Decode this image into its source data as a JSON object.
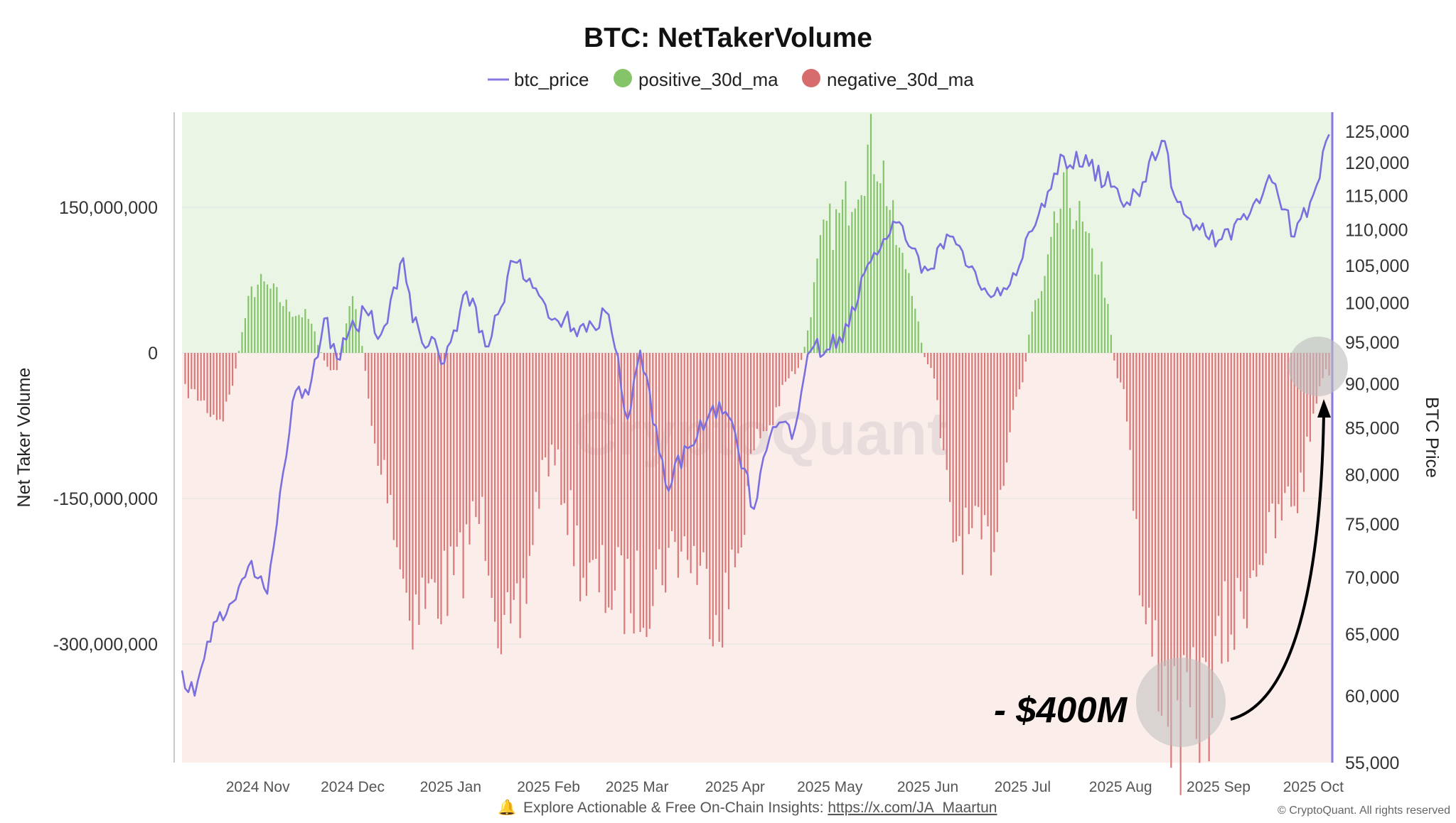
{
  "chart_data": {
    "type": "bar",
    "title": "BTC: NetTakerVolume",
    "ylabel": "Net Taker Volume",
    "y2label": "BTC Price",
    "ylim": [
      -280000000,
      165000000
    ],
    "y2lim": [
      55000,
      125000
    ],
    "y2_scale": "log",
    "y_ticks": [
      "150,000,000",
      "0",
      "-150,000,000",
      "-300,000,000"
    ],
    "y2_ticks": [
      "125,000",
      "120,000",
      "115,000",
      "110,000",
      "105,000",
      "100,000",
      "95,000",
      "90,000",
      "85,000",
      "80,000",
      "75,000",
      "70,000",
      "65,000",
      "60,000",
      "55,000"
    ],
    "x_ticks": [
      "2024 Nov",
      "2024 Dec",
      "2025 Jan",
      "2025 Feb",
      "2025 Mar",
      "2025 Apr",
      "2025 May",
      "2025 Jun",
      "2025 Jul",
      "2025 Aug",
      "2025 Sep",
      "2025 Oct"
    ],
    "x_range": [
      "2024-10-08",
      "2025-10-07"
    ],
    "legend": [
      {
        "name": "btc_price",
        "color": "#8878e0",
        "marker": "line"
      },
      {
        "name": "positive_30d_ma",
        "color": "#86c46a",
        "marker": "dot"
      },
      {
        "name": "negative_30d_ma",
        "color": "#d76c6c",
        "marker": "dot"
      }
    ],
    "legend_placement": "top-center",
    "colors": {
      "price": "#7b6fe0",
      "positive": "#86c46a",
      "negative": "#d97a7a",
      "bg_positive": "#eaf5e6",
      "bg_negative": "#fbeeea"
    },
    "net_taker_volume_monthly": [
      {
        "x": "2024-10-10",
        "y": -40000000
      },
      {
        "x": "2024-10-20",
        "y": -65000000
      },
      {
        "x": "2024-11-01",
        "y": 70000000
      },
      {
        "x": "2024-11-15",
        "y": 40000000
      },
      {
        "x": "2024-11-25",
        "y": -20000000
      },
      {
        "x": "2024-12-01",
        "y": 50000000
      },
      {
        "x": "2024-12-10",
        "y": -120000000
      },
      {
        "x": "2024-12-20",
        "y": -260000000
      },
      {
        "x": "2025-01-01",
        "y": -240000000
      },
      {
        "x": "2025-01-10",
        "y": -170000000
      },
      {
        "x": "2025-01-20",
        "y": -310000000
      },
      {
        "x": "2025-02-01",
        "y": -110000000
      },
      {
        "x": "2025-02-15",
        "y": -240000000
      },
      {
        "x": "2025-03-01",
        "y": -250000000
      },
      {
        "x": "2025-03-15",
        "y": -200000000
      },
      {
        "x": "2025-03-28",
        "y": -260000000
      },
      {
        "x": "2025-04-10",
        "y": -80000000
      },
      {
        "x": "2025-04-20",
        "y": -20000000
      },
      {
        "x": "2025-05-01",
        "y": 130000000
      },
      {
        "x": "2025-05-15",
        "y": 210000000
      },
      {
        "x": "2025-05-25",
        "y": 90000000
      },
      {
        "x": "2025-06-01",
        "y": -10000000
      },
      {
        "x": "2025-06-10",
        "y": -190000000
      },
      {
        "x": "2025-06-20",
        "y": -200000000
      },
      {
        "x": "2025-06-30",
        "y": -40000000
      },
      {
        "x": "2025-07-05",
        "y": 50000000
      },
      {
        "x": "2025-07-15",
        "y": 160000000
      },
      {
        "x": "2025-07-25",
        "y": 90000000
      },
      {
        "x": "2025-08-01",
        "y": -30000000
      },
      {
        "x": "2025-08-10",
        "y": -300000000
      },
      {
        "x": "2025-08-20",
        "y": -390000000
      },
      {
        "x": "2025-08-28",
        "y": -360000000
      },
      {
        "x": "2025-09-05",
        "y": -280000000
      },
      {
        "x": "2025-09-15",
        "y": -200000000
      },
      {
        "x": "2025-09-25",
        "y": -150000000
      },
      {
        "x": "2025-10-05",
        "y": -20000000
      }
    ],
    "btc_price": [
      {
        "x": "2024-10-08",
        "y": 62000
      },
      {
        "x": "2024-10-12",
        "y": 60000
      },
      {
        "x": "2024-10-18",
        "y": 66000
      },
      {
        "x": "2024-10-25",
        "y": 68000
      },
      {
        "x": "2024-10-29",
        "y": 71000
      },
      {
        "x": "2024-11-04",
        "y": 68500
      },
      {
        "x": "2024-11-07",
        "y": 75000
      },
      {
        "x": "2024-11-12",
        "y": 88000
      },
      {
        "x": "2024-11-18",
        "y": 90500
      },
      {
        "x": "2024-11-22",
        "y": 98000
      },
      {
        "x": "2024-11-26",
        "y": 93000
      },
      {
        "x": "2024-12-05",
        "y": 99000
      },
      {
        "x": "2024-12-10",
        "y": 96000
      },
      {
        "x": "2024-12-17",
        "y": 106000
      },
      {
        "x": "2024-12-20",
        "y": 97500
      },
      {
        "x": "2024-12-30",
        "y": 92500
      },
      {
        "x": "2025-01-06",
        "y": 101500
      },
      {
        "x": "2025-01-13",
        "y": 94500
      },
      {
        "x": "2025-01-21",
        "y": 105500
      },
      {
        "x": "2025-01-27",
        "y": 102000
      },
      {
        "x": "2025-02-03",
        "y": 98000
      },
      {
        "x": "2025-02-11",
        "y": 97000
      },
      {
        "x": "2025-02-20",
        "y": 98500
      },
      {
        "x": "2025-02-26",
        "y": 86000
      },
      {
        "x": "2025-03-02",
        "y": 94000
      },
      {
        "x": "2025-03-10",
        "y": 79000
      },
      {
        "x": "2025-03-18",
        "y": 83000
      },
      {
        "x": "2025-03-25",
        "y": 87500
      },
      {
        "x": "2025-04-01",
        "y": 84500
      },
      {
        "x": "2025-04-07",
        "y": 76500
      },
      {
        "x": "2025-04-12",
        "y": 84000
      },
      {
        "x": "2025-04-20",
        "y": 85000
      },
      {
        "x": "2025-04-25",
        "y": 94000
      },
      {
        "x": "2025-05-05",
        "y": 95000
      },
      {
        "x": "2025-05-12",
        "y": 104000
      },
      {
        "x": "2025-05-22",
        "y": 111000
      },
      {
        "x": "2025-05-30",
        "y": 104000
      },
      {
        "x": "2025-06-09",
        "y": 109000
      },
      {
        "x": "2025-06-13",
        "y": 105000
      },
      {
        "x": "2025-06-22",
        "y": 101000
      },
      {
        "x": "2025-07-01",
        "y": 106000
      },
      {
        "x": "2025-07-10",
        "y": 116000
      },
      {
        "x": "2025-07-14",
        "y": 121000
      },
      {
        "x": "2025-07-22",
        "y": 119500
      },
      {
        "x": "2025-07-31",
        "y": 116000
      },
      {
        "x": "2025-08-03",
        "y": 114000
      },
      {
        "x": "2025-08-08",
        "y": 117000
      },
      {
        "x": "2025-08-14",
        "y": 123500
      },
      {
        "x": "2025-08-19",
        "y": 114000
      },
      {
        "x": "2025-08-26",
        "y": 110000
      },
      {
        "x": "2025-09-01",
        "y": 108500
      },
      {
        "x": "2025-09-08",
        "y": 111500
      },
      {
        "x": "2025-09-18",
        "y": 117000
      },
      {
        "x": "2025-09-25",
        "y": 109000
      },
      {
        "x": "2025-09-30",
        "y": 114000
      },
      {
        "x": "2025-10-06",
        "y": 124500
      }
    ],
    "annotations": [
      {
        "text": "- $400M"
      }
    ]
  },
  "watermark": "CryptoQuant",
  "footer": {
    "emoji": "🔔",
    "text": "Explore Actionable & Free On-Chain Insights: ",
    "link": "https://x.com/JA_Maartun",
    "copyright": "© CryptoQuant. All rights reserved"
  }
}
